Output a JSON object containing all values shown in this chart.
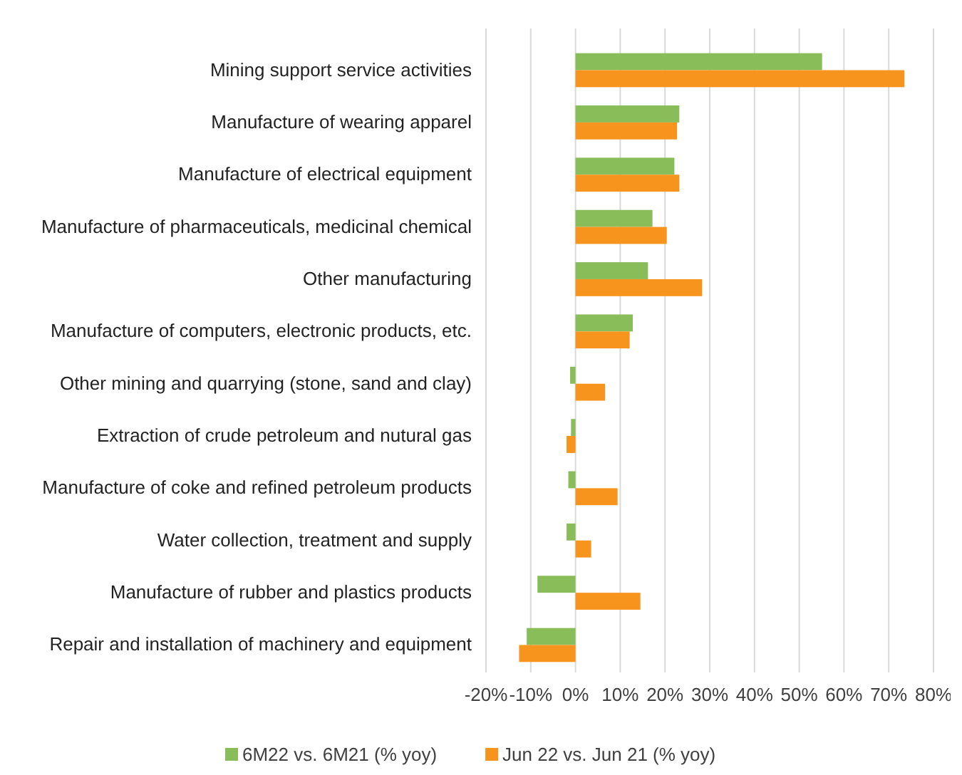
{
  "chart_data": {
    "type": "bar",
    "orientation": "horizontal",
    "categories": [
      "Mining support service activities",
      "Manufacture of wearing apparel",
      "Manufacture of electrical equipment",
      "Manufacture of pharmaceuticals, medicinal chemical",
      "Other manufacturing",
      "Manufacture of computers, electronic products, etc.",
      "Other mining and quarrying (stone, sand and clay)",
      "Extraction of crude petroleum and nutural gas",
      "Manufacture of coke and refined petroleum products",
      "Water collection, treatment and supply",
      "Manufacture of rubber and plastics products",
      "Repair and installation of machinery and equipment"
    ],
    "series": [
      {
        "name": "6M22 vs. 6M21 (% yoy)",
        "color": "#88bd5a",
        "values": [
          55.1,
          23.2,
          22.1,
          17.2,
          16.2,
          12.8,
          -1.2,
          -1.0,
          -1.6,
          -2.0,
          -8.5,
          -10.9
        ]
      },
      {
        "name": "Jun 22 vs. Jun 21 (% yoy)",
        "color": "#f7941d",
        "values": [
          73.5,
          22.7,
          23.2,
          20.4,
          28.3,
          12.1,
          6.6,
          -2.0,
          9.4,
          3.5,
          14.5,
          -12.6
        ]
      }
    ],
    "xlim": [
      -20,
      80
    ],
    "xticks": [
      {
        "value": -20,
        "label": "-20%"
      },
      {
        "value": -10,
        "label": "-10%"
      },
      {
        "value": 0,
        "label": "0%"
      },
      {
        "value": 10,
        "label": "10%"
      },
      {
        "value": 20,
        "label": "20%"
      },
      {
        "value": 30,
        "label": "30%"
      },
      {
        "value": 40,
        "label": "40%"
      },
      {
        "value": 50,
        "label": "50%"
      },
      {
        "value": 60,
        "label": "60%"
      },
      {
        "value": 70,
        "label": "70%"
      },
      {
        "value": 80,
        "label": "80%"
      }
    ],
    "grid": "x",
    "legend": "bottom"
  }
}
